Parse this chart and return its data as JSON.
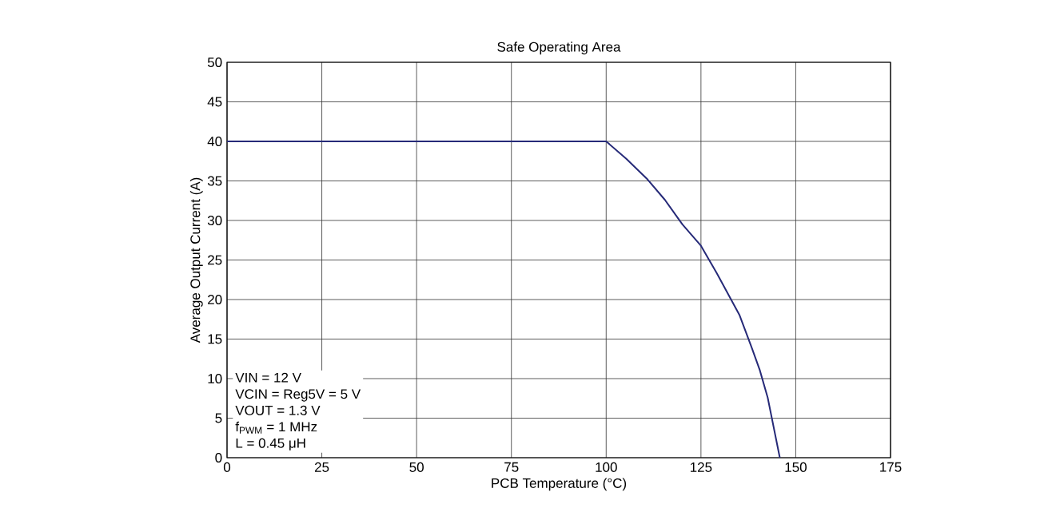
{
  "chart_data": {
    "type": "line",
    "title": "Safe Operating Area",
    "xlabel": "PCB Temperature (°C)",
    "ylabel": "Average Output Current (A)",
    "x": [
      0,
      100,
      105.3,
      110.9,
      115.5,
      120.1,
      125,
      129.2,
      135.2,
      138.4,
      140.5,
      142.6,
      145.8
    ],
    "series": [
      {
        "color": "#262a78",
        "values": [
          40,
          40,
          37.8,
          35.2,
          32.6,
          29.5,
          26.8,
          23.3,
          18.0,
          13.9,
          11.1,
          7.6,
          0
        ]
      }
    ],
    "xlim": [
      0,
      175
    ],
    "xticks": [
      0,
      25,
      50,
      75,
      100,
      125,
      150,
      175
    ],
    "ylim": [
      0,
      50
    ],
    "yticks": [
      0,
      5,
      10,
      15,
      20,
      25,
      30,
      35,
      40,
      45,
      50
    ],
    "grid": true,
    "marker": "none",
    "line_style": "solid",
    "annotations": [
      "VIN = 12 V",
      "VCIN = Reg5V = 5 V",
      "VOUT = 1.3 V",
      "f$_{PWM}$ = 1 MHz",
      "L = 0.45 μH"
    ]
  }
}
